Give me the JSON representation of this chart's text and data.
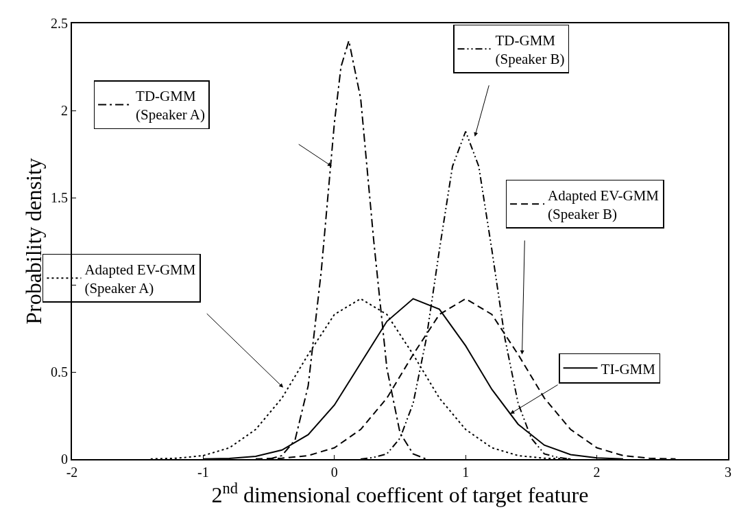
{
  "chart_data": {
    "type": "line",
    "xlabel": "2$^{nd}$ dimensional coefficent of target feature",
    "ylabel": "Probability density",
    "xlim": [
      -2,
      3
    ],
    "xticks": [
      -2,
      -1,
      0,
      1,
      2,
      3
    ],
    "ylim": [
      0,
      2.5
    ],
    "yticks": [
      0,
      0.5,
      {
        "value": 1,
        "label": null
      },
      1.5,
      2,
      2.5
    ],
    "grid": false,
    "legend": "top left",
    "marker": "none",
    "series": [
      {
        "name": "TD-GMM\n(Speaker A)",
        "color": "#000000",
        "line_style": "dashdot",
        "x": [
          -0.5,
          -0.4,
          -0.3,
          -0.2,
          -0.1,
          0,
          0.05,
          0.11,
          0.2,
          0.3,
          0.4,
          0.5,
          0.6,
          0.7
        ],
        "values": [
          0.0,
          0.02,
          0.11,
          0.42,
          1.08,
          1.93,
          2.25,
          2.4,
          2.07,
          1.25,
          0.52,
          0.15,
          0.03,
          0.0
        ]
      },
      {
        "name": "TD-GMM\n(Speaker B)",
        "color": "#000000",
        "line_style": "dashdotdot",
        "x": [
          0.2,
          0.3,
          0.4,
          0.5,
          0.6,
          0.7,
          0.8,
          0.9,
          1.0,
          1.1,
          1.2,
          1.3,
          1.4,
          1.5,
          1.6,
          1.7,
          1.8
        ],
        "values": [
          0.0,
          0.01,
          0.03,
          0.12,
          0.32,
          0.69,
          1.2,
          1.68,
          1.88,
          1.68,
          1.2,
          0.69,
          0.32,
          0.12,
          0.03,
          0.01,
          0.0
        ]
      },
      {
        "name": "Adapted EV-GMM\n(Speaker B)",
        "color": "#000000",
        "line_style": "dashed",
        "x": [
          -0.6,
          -0.4,
          -0.2,
          0,
          0.2,
          0.4,
          0.6,
          0.8,
          1.0,
          1.2,
          1.4,
          1.6,
          1.8,
          2.0,
          2.2,
          2.4,
          2.6
        ],
        "values": [
          0.001,
          0.005,
          0.02,
          0.065,
          0.17,
          0.35,
          0.6,
          0.83,
          0.92,
          0.83,
          0.6,
          0.35,
          0.17,
          0.065,
          0.02,
          0.005,
          0.001
        ]
      },
      {
        "name": "TI-GMM",
        "color": "#000000",
        "line_style": "solid",
        "x": [
          -1.0,
          -0.8,
          -0.6,
          -0.4,
          -0.2,
          0,
          0.2,
          0.4,
          0.6,
          0.8,
          1.0,
          1.2,
          1.4,
          1.6,
          1.8,
          2.0,
          2.2
        ],
        "values": [
          0.001,
          0.004,
          0.016,
          0.052,
          0.14,
          0.31,
          0.55,
          0.79,
          0.92,
          0.86,
          0.65,
          0.4,
          0.2,
          0.08,
          0.026,
          0.007,
          0.001
        ]
      },
      {
        "name": "Adapted EV-GMM\n(Speaker A)",
        "color": "#000000",
        "line_style": "dotted",
        "x": [
          -1.4,
          -1.2,
          -1.0,
          -0.8,
          -0.6,
          -0.4,
          -0.2,
          0,
          0.2,
          0.4,
          0.6,
          0.8,
          1.0,
          1.2,
          1.4,
          1.6,
          1.8
        ],
        "values": [
          0.001,
          0.005,
          0.02,
          0.065,
          0.17,
          0.35,
          0.6,
          0.83,
          0.92,
          0.83,
          0.6,
          0.35,
          0.17,
          0.065,
          0.02,
          0.005,
          0.001
        ]
      }
    ]
  }
}
